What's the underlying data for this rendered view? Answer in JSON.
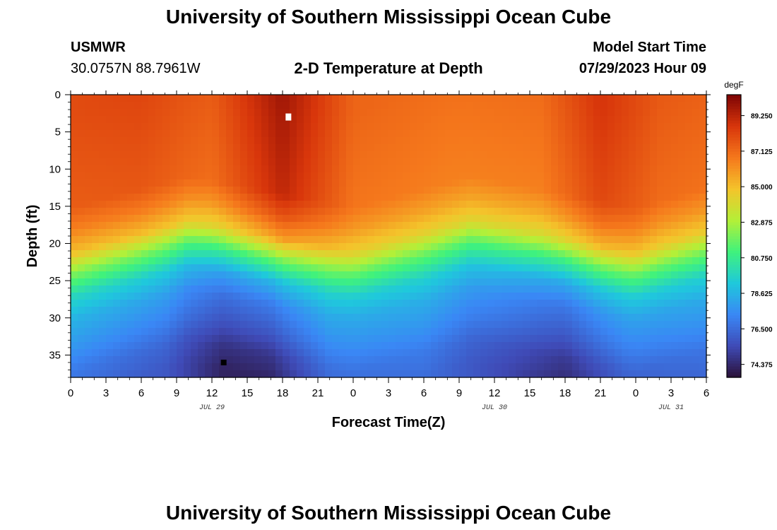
{
  "page": {
    "title": "University of Southern Mississippi Ocean Cube",
    "station": "USMWR",
    "coords": "30.0757N  88.7961W",
    "subtitle": "2-D Temperature at Depth",
    "model_label": "Model Start Time",
    "model_time": "07/29/2023 Hour 09",
    "footer_title": "University of Southern Mississippi Ocean Cube"
  },
  "colors": {
    "background": "#ffffff",
    "axis": "#000000",
    "max_marker": "#ffffff",
    "min_marker": "#000000",
    "colormap": [
      "#2a1036",
      "#3f4ab6",
      "#3a87f5",
      "#1fc8dc",
      "#3ff27d",
      "#b3f038",
      "#f4c42b",
      "#f5781c",
      "#d8360b",
      "#7e0404"
    ]
  },
  "chart_data": {
    "type": "heatmap",
    "title": "2-D Temperature at Depth",
    "xlabel": "Forecast Time(Z)",
    "ylabel": "Depth (ft)",
    "x_hours_range": [
      0,
      54
    ],
    "x_tick_labels": [
      "0",
      "3",
      "6",
      "9",
      "12",
      "15",
      "18",
      "21",
      "0",
      "3",
      "6",
      "9",
      "12",
      "15",
      "18",
      "21",
      "0",
      "3",
      "6"
    ],
    "date_labels": [
      {
        "label": "JUL 29",
        "hour": 12
      },
      {
        "label": "JUL 30",
        "hour": 36
      },
      {
        "label": "JUL 31",
        "hour": 51
      }
    ],
    "ylim": [
      0,
      38
    ],
    "y_ticks": [
      0,
      5,
      10,
      15,
      20,
      25,
      30,
      35
    ],
    "colorbar": {
      "unit": "degF",
      "min": 73.6,
      "max": 90.5,
      "tick_values": [
        74.375,
        76.5,
        78.625,
        80.75,
        82.875,
        85.0,
        87.125,
        89.25
      ],
      "tick_labels": [
        "74.375",
        "76.500",
        "78.625",
        "80.750",
        "82.875",
        "85.000",
        "87.125",
        "89.250"
      ]
    },
    "depth_profile": [
      {
        "depth": 0,
        "offset": 0.0
      },
      {
        "depth": 13,
        "offset": -0.5
      },
      {
        "depth": 16,
        "offset": -1.5
      },
      {
        "depth": 19,
        "offset": -3.0
      },
      {
        "depth": 22,
        "offset": -6.0
      },
      {
        "depth": 25,
        "offset": -8.3
      },
      {
        "depth": 28,
        "offset": -9.5
      },
      {
        "depth": 32,
        "offset": -10.4
      },
      {
        "depth": 35,
        "offset": -11.2
      },
      {
        "depth": 38,
        "offset": -11.6
      }
    ],
    "thermocline_depth_ft": [
      {
        "hour": 0,
        "shift": 2.2
      },
      {
        "hour": 10,
        "shift": -2.0
      },
      {
        "hour": 24,
        "shift": 2.2
      },
      {
        "hour": 34,
        "shift": -2.0
      },
      {
        "hour": 48,
        "shift": 2.2
      },
      {
        "hour": 54,
        "shift": -0.5
      }
    ],
    "surface_temp_degF": [
      {
        "hour": 0,
        "value": 88.0
      },
      {
        "hour": 6,
        "value": 88.2
      },
      {
        "hour": 12,
        "value": 87.6
      },
      {
        "hour": 18,
        "value": 89.8
      },
      {
        "hour": 24,
        "value": 87.3
      },
      {
        "hour": 32,
        "value": 87.0
      },
      {
        "hour": 40,
        "value": 87.1
      },
      {
        "hour": 45,
        "value": 88.7
      },
      {
        "hour": 50,
        "value": 87.6
      },
      {
        "hour": 54,
        "value": 87.4
      }
    ],
    "bottom_temp_degF": [
      {
        "hour": 0,
        "value": 76.6
      },
      {
        "hour": 8,
        "value": 75.9
      },
      {
        "hour": 13,
        "value": 74.2
      },
      {
        "hour": 17,
        "value": 74.3
      },
      {
        "hour": 22,
        "value": 76.3
      },
      {
        "hour": 30,
        "value": 76.6
      },
      {
        "hour": 37,
        "value": 75.4
      },
      {
        "hour": 42,
        "value": 74.5
      },
      {
        "hour": 47,
        "value": 75.9
      },
      {
        "hour": 54,
        "value": 76.4
      }
    ],
    "max_marker": {
      "hour": 18.5,
      "depth": 3,
      "label": "maximum"
    },
    "min_marker": {
      "hour": 13,
      "depth": 36,
      "label": "minimum"
    }
  }
}
